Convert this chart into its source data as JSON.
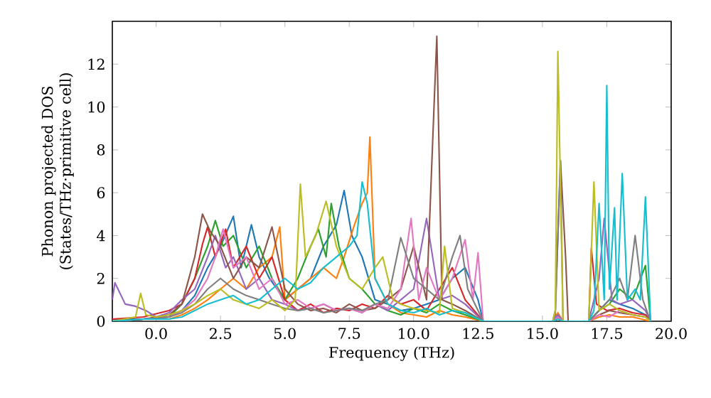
{
  "chart_data": {
    "type": "line",
    "xlabel": "Frequency (THz)",
    "ylabel": "Phonon projected DOS (States/THz·primitive cell)",
    "xlim": [
      -1.7,
      20
    ],
    "ylim": [
      0,
      14
    ],
    "xticks": [
      {
        "value": 0,
        "label": "0.0"
      },
      {
        "value": 2.5,
        "label": "2.5"
      },
      {
        "value": 5,
        "label": "5.0"
      },
      {
        "value": 7.5,
        "label": "7.5"
      },
      {
        "value": 10,
        "label": "10.0"
      },
      {
        "value": 12.5,
        "label": "12.5"
      },
      {
        "value": 15,
        "label": "15.0"
      },
      {
        "value": 17.5,
        "label": "17.5"
      },
      {
        "value": 20,
        "label": "20.0"
      }
    ],
    "yticks": [
      0,
      2,
      4,
      6,
      8,
      10,
      12
    ],
    "series": [
      {
        "color": "#1f77b4",
        "x": [
          -1.7,
          -0.5,
          0.5,
          1.0,
          1.5,
          2.0,
          2.5,
          3.0,
          3.3,
          3.7,
          4.0,
          4.4,
          5.0,
          5.5,
          6.0,
          6.5,
          7.0,
          7.3,
          7.6,
          8.0,
          8.5,
          9.0,
          9.5,
          10.0,
          10.5,
          11.0,
          11.5,
          12.0,
          12.5,
          12.7,
          15.4,
          15.6,
          15.8,
          16.8,
          17.2,
          17.6,
          18.0,
          18.5,
          19.0,
          19.2
        ],
        "values": [
          0.1,
          0.1,
          0.2,
          0.5,
          1.2,
          2.5,
          3.5,
          4.9,
          2.5,
          4.5,
          3.0,
          2.0,
          1.0,
          1.5,
          2.0,
          3.5,
          4.5,
          6.1,
          4.0,
          3.0,
          1.0,
          0.8,
          0.5,
          0.6,
          0.8,
          1.0,
          2.0,
          2.5,
          1.0,
          0,
          0,
          0.3,
          0,
          0,
          0.5,
          1.0,
          0.8,
          0.6,
          0.3,
          0
        ]
      },
      {
        "color": "#ff7f0e",
        "x": [
          -1.7,
          -0.5,
          0.5,
          1.0,
          1.5,
          2.0,
          2.5,
          3.0,
          3.5,
          4.0,
          4.5,
          4.8,
          5.0,
          5.5,
          6.0,
          6.5,
          7.0,
          7.3,
          7.7,
          8.0,
          8.2,
          8.3,
          8.5,
          9.0,
          9.5,
          10.0,
          10.5,
          11.0,
          11.5,
          12.0,
          12.7,
          15.4,
          15.6,
          15.8,
          16.8,
          17.2,
          17.6,
          18.0,
          18.5,
          19.2
        ],
        "values": [
          0,
          0.1,
          0.1,
          0.3,
          0.6,
          1.0,
          1.5,
          2.0,
          1.5,
          2.5,
          3.0,
          4.4,
          1.0,
          1.5,
          2.0,
          2.5,
          2.0,
          3.0,
          4.5,
          5.5,
          6.0,
          8.6,
          2.0,
          0.8,
          0.4,
          0.3,
          0.2,
          0.5,
          0.3,
          0.2,
          0,
          0,
          0.4,
          0,
          0,
          0.2,
          0.3,
          0.2,
          0.2,
          0
        ]
      },
      {
        "color": "#2ca02c",
        "x": [
          -1.7,
          -0.5,
          0.5,
          1.0,
          1.5,
          2.0,
          2.3,
          2.6,
          3.0,
          3.5,
          4.0,
          4.5,
          5.0,
          5.5,
          6.0,
          6.3,
          6.6,
          6.8,
          7.1,
          7.5,
          8.0,
          8.5,
          9.0,
          9.5,
          10.0,
          10.5,
          11.0,
          11.5,
          12.0,
          12.7,
          15.4,
          15.6,
          15.8,
          16.8,
          17.2,
          17.6,
          18.0,
          18.5,
          19.0,
          19.2
        ],
        "values": [
          0,
          0.1,
          0.2,
          0.8,
          2.0,
          3.5,
          4.7,
          3.5,
          4.0,
          2.5,
          3.5,
          2.0,
          1.0,
          2.0,
          3.5,
          4.3,
          3.0,
          5.5,
          3.5,
          2.0,
          1.5,
          0.8,
          0.5,
          0.3,
          0.6,
          0.4,
          0.8,
          0.5,
          0.3,
          0,
          0,
          0.2,
          0,
          0,
          0.5,
          0.8,
          1.5,
          1.0,
          2.6,
          0
        ]
      },
      {
        "color": "#d62728",
        "x": [
          -1.7,
          -0.5,
          0.5,
          1.0,
          1.5,
          1.8,
          2.0,
          2.3,
          2.7,
          3.0,
          3.5,
          4.0,
          4.5,
          5.0,
          5.5,
          6.0,
          6.5,
          7.0,
          7.5,
          8.0,
          8.5,
          9.0,
          9.5,
          10.0,
          10.5,
          11.0,
          11.5,
          12.0,
          12.7,
          15.4,
          15.6,
          15.8,
          16.8,
          16.9,
          17.1,
          17.5,
          18.0,
          18.5,
          19.0,
          19.2
        ],
        "values": [
          0.1,
          0.2,
          0.5,
          0.8,
          2.0,
          3.6,
          4.4,
          3.0,
          4.3,
          2.5,
          3.5,
          2.0,
          3.0,
          1.0,
          0.5,
          0.8,
          0.4,
          0.6,
          0.5,
          0.8,
          0.6,
          1.2,
          0.8,
          1.0,
          0.5,
          1.5,
          2.5,
          1.0,
          0,
          0,
          0.2,
          0,
          0,
          3.4,
          0.8,
          0.5,
          0.6,
          0.4,
          0.3,
          0
        ]
      },
      {
        "color": "#9467bd",
        "x": [
          -1.7,
          -1.6,
          -1.2,
          -0.8,
          -0.4,
          0.0,
          0.5,
          1.0,
          1.5,
          2.0,
          2.3,
          2.7,
          3.0,
          3.5,
          4.0,
          4.5,
          5.0,
          5.5,
          6.0,
          6.5,
          7.0,
          7.5,
          8.0,
          8.5,
          9.0,
          9.5,
          10.0,
          10.5,
          11.0,
          11.5,
          12.0,
          12.7,
          15.4,
          15.6,
          15.8,
          16.8,
          17.2,
          17.4,
          17.7,
          18.0,
          18.5,
          19.0,
          19.2
        ],
        "values": [
          1.0,
          1.8,
          0.8,
          0.7,
          0.5,
          0.2,
          0.4,
          1.0,
          1.5,
          3.0,
          4.0,
          2.5,
          3.0,
          1.5,
          2.0,
          1.0,
          0.8,
          0.5,
          0.6,
          0.8,
          0.5,
          0.6,
          0.4,
          0.8,
          0.5,
          1.0,
          1.5,
          4.8,
          1.0,
          1.2,
          0.8,
          0,
          0,
          0.3,
          0,
          0,
          2.0,
          4.8,
          1.0,
          0.8,
          1.0,
          0.5,
          0
        ]
      },
      {
        "color": "#8c564b",
        "x": [
          -1.7,
          -0.5,
          0.5,
          1.0,
          1.5,
          1.8,
          2.1,
          2.5,
          3.0,
          3.5,
          4.0,
          4.5,
          5.0,
          5.5,
          6.0,
          6.5,
          7.0,
          7.5,
          8.0,
          8.5,
          9.0,
          9.5,
          10.0,
          10.5,
          10.8,
          10.9,
          11.1,
          11.5,
          12.0,
          12.7,
          15.4,
          15.5,
          15.7,
          15.9,
          16.0,
          16.8,
          17.2,
          17.6,
          18.0,
          18.5,
          19.0,
          19.2
        ],
        "values": [
          0,
          0.1,
          0.3,
          0.8,
          3.0,
          5.0,
          4.2,
          3.5,
          2.0,
          3.0,
          2.5,
          4.4,
          1.5,
          0.8,
          0.5,
          0.6,
          0.4,
          0.8,
          0.5,
          0.6,
          1.0,
          1.5,
          3.5,
          1.0,
          10.3,
          13.3,
          1.0,
          0.8,
          0.5,
          0,
          0,
          0.5,
          7.5,
          3.0,
          0,
          0,
          0.3,
          0.5,
          0.4,
          0.3,
          0.2,
          0
        ]
      },
      {
        "color": "#e377c2",
        "x": [
          -1.7,
          -0.5,
          0.5,
          1.0,
          1.5,
          2.0,
          2.3,
          2.6,
          3.0,
          3.5,
          4.0,
          4.5,
          5.0,
          5.5,
          6.0,
          6.5,
          7.0,
          7.5,
          8.0,
          8.5,
          9.0,
          9.5,
          9.9,
          10.2,
          10.5,
          11.0,
          11.5,
          12.0,
          12.3,
          12.5,
          12.7,
          15.4,
          15.6,
          15.8,
          16.8,
          17.2,
          17.6,
          18.0,
          18.5,
          19.0,
          19.2
        ],
        "values": [
          0,
          0.1,
          0.2,
          0.5,
          1.0,
          2.0,
          3.0,
          4.3,
          2.5,
          3.0,
          1.5,
          2.0,
          0.8,
          1.0,
          0.6,
          0.8,
          0.5,
          0.6,
          0.4,
          0.8,
          0.6,
          1.5,
          4.8,
          1.0,
          2.5,
          1.0,
          2.0,
          3.8,
          1.0,
          3.2,
          0,
          0,
          0.2,
          0,
          0,
          0.3,
          0.2,
          0.5,
          0.3,
          0.2,
          0
        ]
      },
      {
        "color": "#7f7f7f",
        "x": [
          -1.7,
          -0.5,
          0.5,
          1.0,
          1.5,
          2.0,
          2.5,
          3.0,
          3.5,
          4.0,
          4.5,
          5.0,
          5.5,
          6.0,
          6.5,
          7.0,
          7.5,
          8.0,
          8.5,
          9.0,
          9.5,
          10.0,
          10.5,
          11.0,
          11.5,
          11.8,
          12.1,
          12.7,
          15.4,
          15.5,
          15.7,
          15.8,
          16.8,
          17.2,
          17.6,
          18.0,
          18.3,
          18.6,
          18.9,
          19.2
        ],
        "values": [
          0,
          0.1,
          0.2,
          0.4,
          0.8,
          1.5,
          2.0,
          1.5,
          1.2,
          1.0,
          0.8,
          0.6,
          0.5,
          0.6,
          0.4,
          0.5,
          0.6,
          0.5,
          0.8,
          1.0,
          3.9,
          2.0,
          1.5,
          1.0,
          3.0,
          4.0,
          1.5,
          0,
          0,
          0.3,
          7.5,
          0,
          0,
          0.5,
          1.0,
          2.0,
          1.0,
          4.0,
          1.0,
          0
        ]
      },
      {
        "color": "#bcbd22",
        "x": [
          -1.7,
          -0.8,
          -0.6,
          -0.4,
          0.0,
          0.5,
          1.0,
          1.5,
          2.0,
          2.5,
          3.0,
          3.5,
          4.0,
          4.5,
          5.0,
          5.4,
          5.6,
          5.8,
          6.2,
          6.6,
          7.0,
          7.5,
          8.0,
          8.5,
          8.8,
          9.2,
          9.5,
          10.0,
          10.5,
          11.0,
          11.2,
          11.5,
          12.0,
          12.7,
          15.4,
          15.5,
          15.6,
          15.8,
          16.8,
          17.0,
          17.2,
          17.6,
          18.0,
          18.5,
          19.0,
          19.2
        ],
        "values": [
          0,
          0.2,
          1.3,
          0.3,
          0.2,
          0.3,
          0.5,
          0.8,
          1.2,
          1.5,
          1.0,
          0.8,
          0.6,
          1.0,
          0.5,
          1.0,
          6.4,
          3.0,
          4.0,
          5.6,
          3.5,
          2.0,
          1.5,
          2.5,
          3.0,
          1.0,
          0.8,
          0.6,
          0.5,
          0.4,
          3.5,
          0.6,
          0.4,
          0,
          0,
          0.5,
          12.6,
          0,
          0,
          6.5,
          0.5,
          0.8,
          0.5,
          0.3,
          0.2,
          0
        ]
      },
      {
        "color": "#17becf",
        "x": [
          -1.7,
          -0.5,
          0.5,
          1.0,
          1.5,
          2.0,
          2.5,
          3.0,
          3.5,
          4.0,
          4.5,
          5.0,
          5.5,
          6.0,
          6.5,
          7.0,
          7.5,
          7.8,
          8.0,
          8.2,
          8.5,
          9.0,
          9.5,
          10.0,
          10.5,
          11.0,
          11.5,
          12.0,
          12.7,
          15.4,
          15.6,
          15.8,
          16.8,
          17.0,
          17.2,
          17.4,
          17.5,
          17.6,
          17.8,
          17.9,
          18.1,
          18.3,
          18.6,
          18.8,
          19.0,
          19.2
        ],
        "values": [
          0,
          0.1,
          0.1,
          0.2,
          0.5,
          0.8,
          1.0,
          1.2,
          0.8,
          1.0,
          1.5,
          2.0,
          1.5,
          1.8,
          2.5,
          3.0,
          3.5,
          4.0,
          6.5,
          5.5,
          2.0,
          0.8,
          0.5,
          0.4,
          0.6,
          0.3,
          0.5,
          0.4,
          0,
          0,
          0.1,
          0,
          0,
          0.5,
          5.5,
          1.0,
          11.0,
          1.5,
          5.3,
          1.0,
          6.9,
          1.0,
          1.5,
          1.0,
          5.8,
          0
        ]
      }
    ]
  }
}
